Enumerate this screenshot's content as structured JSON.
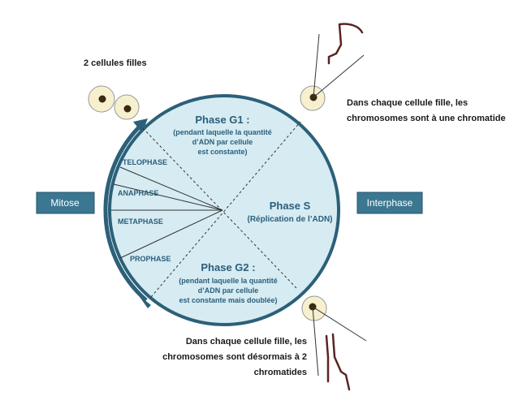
{
  "labels": {
    "mitose": "Mitose",
    "interphase": "Interphase",
    "cellules_filles": "2 cellules filles",
    "phase_g1": {
      "title": "Phase G1 :",
      "lines": [
        "(pendant laquelle la quantité",
        "d’ADN par cellule",
        "est constante)"
      ]
    },
    "phase_s": {
      "title": "Phase S",
      "sub": "(Réplication de l’ADN)"
    },
    "phase_g2": {
      "title": "Phase G2 :",
      "lines": [
        "(pendant laquelle la quantité",
        "d’ADN par cellule",
        "est constante mais doublée)"
      ]
    },
    "mitosis_phases": [
      "TELOPHASE",
      "ANAPHASE",
      "METAPHASE",
      "PROPHASE"
    ],
    "note_top": [
      "Dans chaque cellule fille,  les",
      "chromosomes sont à une chromatide"
    ],
    "note_bottom": [
      "Dans chaque cellule fille,  les",
      "chromosomes sont désormais à 2",
      "chromatides"
    ]
  },
  "colors": {
    "circle_fill": "#d6ebf2",
    "circle_stroke": "#2c6079",
    "button_fill": "#3b7790",
    "cell_fill": "#f7f0cf",
    "chromosome": "#5a2424"
  }
}
